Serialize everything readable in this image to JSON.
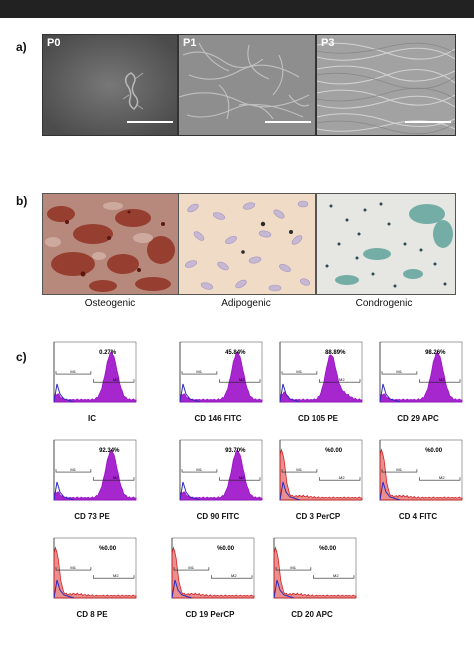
{
  "panels": {
    "a": {
      "label": "a)",
      "images": [
        "P0",
        "P1",
        "P3"
      ]
    },
    "b": {
      "label": "b)",
      "images": [
        "Osteogenic",
        "Adipogenic",
        "Condrogenic"
      ]
    },
    "c": {
      "label": "c)"
    }
  },
  "flow": [
    {
      "name": "IC",
      "pct": "0.27%",
      "peak": "high"
    },
    {
      "name": "CD 146 FITC",
      "pct": "45.84%",
      "peak": "high"
    },
    {
      "name": "CD 105 PE",
      "pct": "88.89%",
      "peak": "mid"
    },
    {
      "name": "CD 29 APC",
      "pct": "98.26%",
      "peak": "high"
    },
    {
      "name": "CD 73 PE",
      "pct": "92.34%",
      "peak": "high"
    },
    {
      "name": "CD 90 FITC",
      "pct": "93.70%",
      "peak": "high"
    },
    {
      "name": "CD 3 PerCP",
      "pct": "%0.00",
      "peak": "neg"
    },
    {
      "name": "CD 4 FITC",
      "pct": "%0.00",
      "peak": "neg"
    },
    {
      "name": "CD 8 PE",
      "pct": "%0.00",
      "peak": "neg"
    },
    {
      "name": "CD 19 PerCP",
      "pct": "%0.00",
      "peak": "neg"
    },
    {
      "name": "CD 20 APC",
      "pct": "%0.00",
      "peak": "neg"
    }
  ],
  "gates": {
    "m1": "M1",
    "m2": "M2"
  },
  "colors": {
    "positive": "#9b10c8",
    "negative": "#d42020",
    "isotype": "#2b2bbd"
  }
}
